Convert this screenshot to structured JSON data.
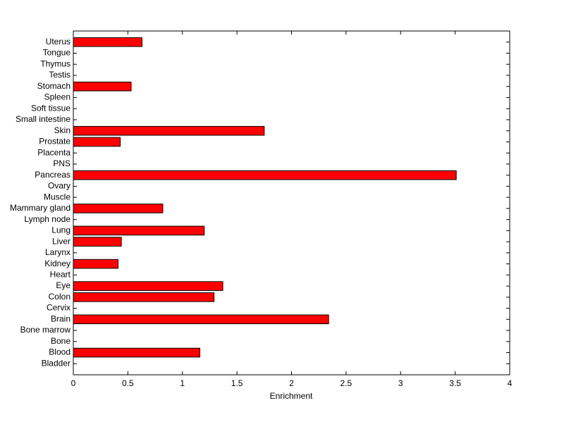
{
  "chart_data": {
    "type": "barh",
    "xlabel": "Enrichment",
    "categories": [
      "Bladder",
      "Blood",
      "Bone",
      "Bone marrow",
      "Brain",
      "Cervix",
      "Colon",
      "Eye",
      "Heart",
      "Kidney",
      "Larynx",
      "Liver",
      "Lung",
      "Lymph node",
      "Mammary gland",
      "Muscle",
      "Ovary",
      "Pancreas",
      "PNS",
      "Placenta",
      "Prostate",
      "Skin",
      "Small intestine",
      "Soft tissue",
      "Spleen",
      "Stomach",
      "Testis",
      "Thymus",
      "Tongue",
      "Uterus"
    ],
    "values": [
      0,
      1.16,
      0,
      0,
      2.34,
      0,
      1.29,
      1.37,
      0,
      0.41,
      0,
      0.44,
      1.2,
      0,
      0.82,
      0,
      0,
      3.51,
      0,
      0,
      0.43,
      1.75,
      0,
      0,
      0,
      0.53,
      0,
      0,
      0,
      0.63
    ],
    "color": "#ff0000",
    "xlim": [
      0,
      4
    ],
    "xticks": [
      0,
      0.5,
      1,
      1.5,
      2,
      2.5,
      3,
      3.5,
      4
    ],
    "grid": false
  }
}
